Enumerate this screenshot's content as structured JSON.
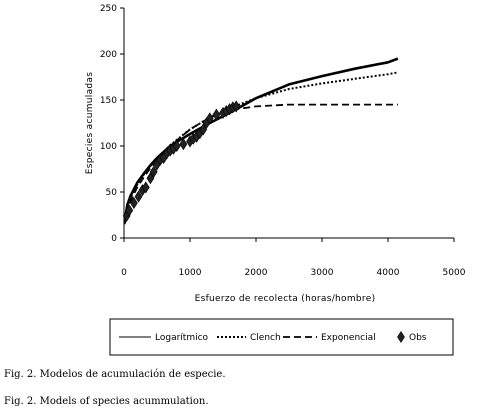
{
  "chart_data": {
    "type": "line",
    "xlabel": "Esfuerzo de recolecta (horas/hombre)",
    "ylabel": "Especies acumuladas",
    "xlim": [
      0,
      5000
    ],
    "ylim": [
      0,
      250
    ],
    "xticks": [
      0,
      1000,
      2000,
      3000,
      4000,
      5000
    ],
    "yticks": [
      0,
      50,
      100,
      150,
      200,
      250
    ],
    "grid": false,
    "legend_position": "bottom",
    "series": [
      {
        "name": "Logarítmico",
        "style": "solid",
        "x": [
          10,
          50,
          100,
          200,
          300,
          400,
          500,
          700,
          1000,
          1300,
          1600,
          2000,
          2500,
          3000,
          3500,
          4000,
          4150
        ],
        "y": [
          18,
          36,
          46,
          60,
          70,
          79,
          87,
          100,
          113,
          125,
          136,
          152,
          167,
          176,
          184,
          191,
          195
        ]
      },
      {
        "name": "Clench",
        "style": "dotted",
        "x": [
          10,
          50,
          100,
          200,
          300,
          400,
          500,
          700,
          1000,
          1300,
          1600,
          2000,
          2500,
          3000,
          3500,
          4000,
          4150
        ],
        "y": [
          16,
          33,
          44,
          58,
          69,
          78,
          86,
          101,
          118,
          131,
          141,
          152,
          162,
          168,
          173,
          178,
          180
        ]
      },
      {
        "name": "Exponencial",
        "style": "dashed",
        "x": [
          10,
          50,
          100,
          200,
          300,
          400,
          500,
          700,
          1000,
          1300,
          1600,
          2000,
          2500,
          3000,
          3500,
          4000,
          4150
        ],
        "y": [
          15,
          30,
          40,
          55,
          66,
          76,
          84,
          100,
          118,
          131,
          139,
          143,
          145,
          145,
          145,
          145,
          145
        ]
      },
      {
        "name": "Obs",
        "style": "marker",
        "x": [
          40,
          80,
          150,
          220,
          280,
          330,
          400,
          450,
          500,
          550,
          600,
          650,
          700,
          750,
          800,
          900,
          1000,
          1050,
          1100,
          1150,
          1200,
          1250,
          1300,
          1400,
          1500,
          1550,
          1600,
          1650,
          1700
        ],
        "y": [
          24,
          30,
          38,
          45,
          52,
          55,
          65,
          72,
          80,
          85,
          87,
          92,
          95,
          97,
          100,
          102,
          105,
          108,
          110,
          114,
          118,
          125,
          130,
          134,
          136,
          138,
          140,
          142,
          143
        ]
      }
    ]
  },
  "captions": {
    "line1": "Fig. 2. Modelos de acumulación de especie.",
    "line2": "Fig. 2. Models of species acummulation."
  }
}
